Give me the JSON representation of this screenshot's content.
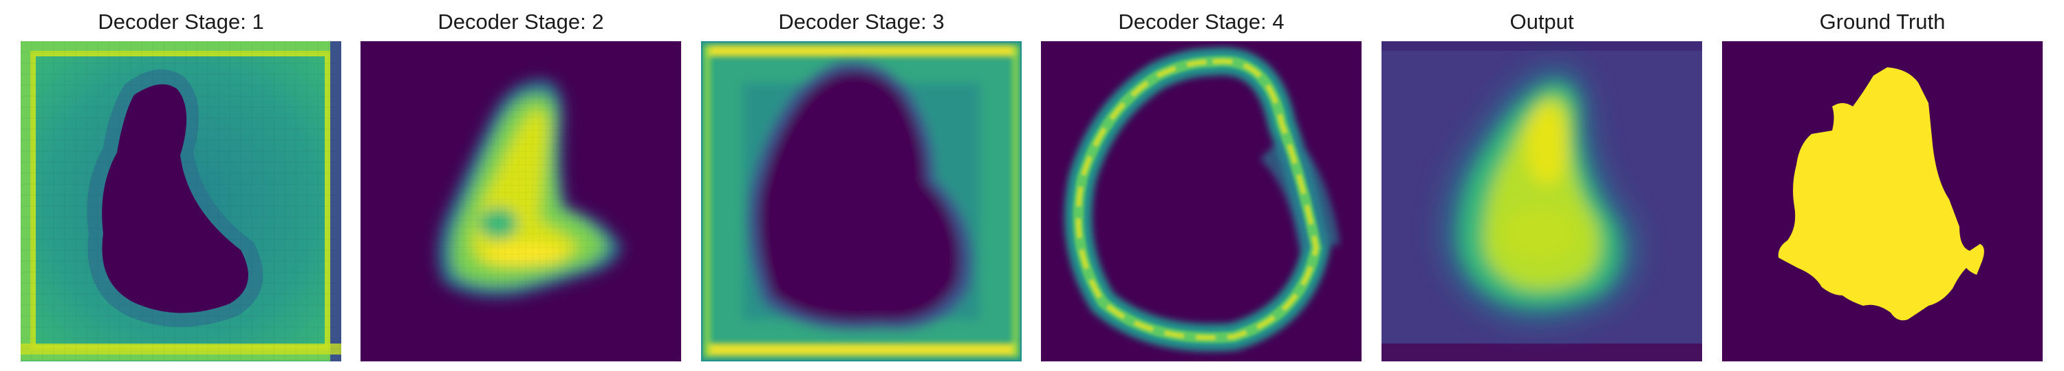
{
  "panels": [
    {
      "title": "Decoder Stage: 1",
      "image": "decoder-stage-1-heatmap"
    },
    {
      "title": "Decoder Stage: 2",
      "image": "decoder-stage-2-heatmap"
    },
    {
      "title": "Decoder Stage: 3",
      "image": "decoder-stage-3-heatmap"
    },
    {
      "title": "Decoder Stage: 4",
      "image": "decoder-stage-4-heatmap"
    },
    {
      "title": "Output",
      "image": "output-heatmap"
    },
    {
      "title": "Ground Truth",
      "image": "ground-truth-mask"
    }
  ],
  "colors": {
    "background": "#440154",
    "low": "#46337e",
    "mid": "#21908d",
    "high": "#fde725"
  }
}
